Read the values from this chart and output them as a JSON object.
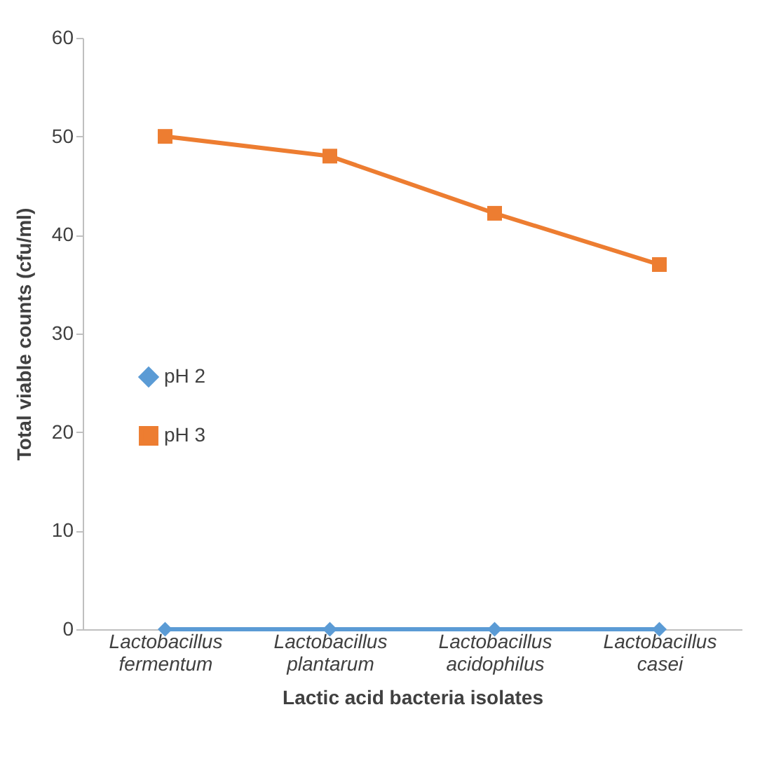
{
  "chart_data": {
    "type": "line",
    "xlabel": "Lactic acid bacteria isolates",
    "ylabel": "Total viable counts (cfu/ml)",
    "categories": [
      "Lactobacillus fermentum",
      "Lactobacillus plantarum",
      "Lactobacillus acidophilus",
      "Lactobacillus casei"
    ],
    "series": [
      {
        "name": "pH 2",
        "color": "#5b9bd5",
        "marker": "diamond",
        "values": [
          0,
          0,
          0,
          0
        ]
      },
      {
        "name": "pH 3",
        "color": "#ed7d31",
        "marker": "square",
        "values": [
          50,
          48,
          42.2,
          37
        ]
      }
    ],
    "ylim": [
      0,
      60
    ],
    "yticks": [
      0,
      10,
      20,
      30,
      40,
      50,
      60
    ],
    "grid": false,
    "legend": "left"
  }
}
